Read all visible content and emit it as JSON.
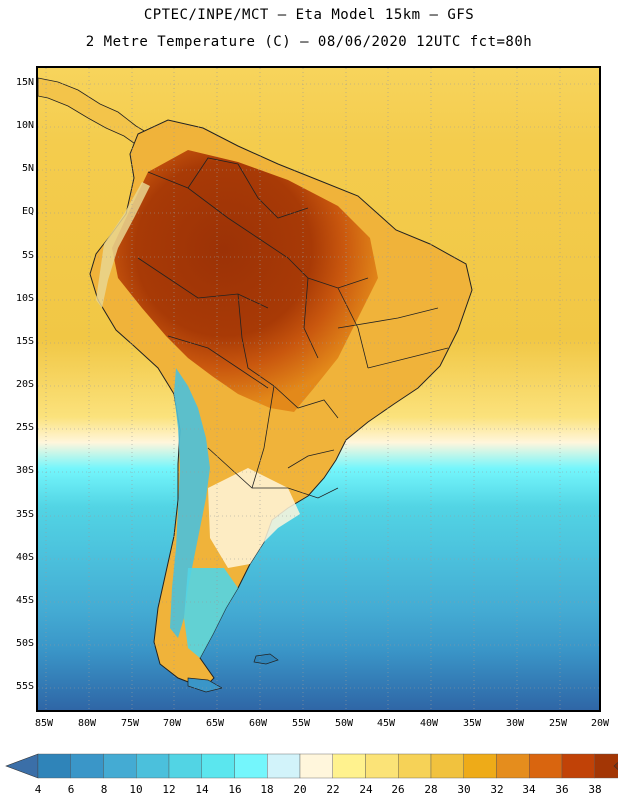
{
  "title": {
    "line1": "CPTEC/INPE/MCT –  Eta Model 15km – GFS",
    "line2": "2 Metre Temperature (C) – 08/06/2020 12UTC fct=80h"
  },
  "lat_ticks": [
    "15N",
    "10N",
    "5N",
    "EQ",
    "5S",
    "10S",
    "15S",
    "20S",
    "25S",
    "30S",
    "35S",
    "40S",
    "45S",
    "50S",
    "55S"
  ],
  "lon_ticks": [
    "85W",
    "80W",
    "75W",
    "70W",
    "65W",
    "60W",
    "55W",
    "50W",
    "45W",
    "40W",
    "35W",
    "30W",
    "25W",
    "20W"
  ],
  "colorbar": {
    "labels": [
      "4",
      "6",
      "8",
      "10",
      "12",
      "14",
      "16",
      "18",
      "20",
      "22",
      "24",
      "26",
      "28",
      "30",
      "32",
      "34",
      "36",
      "38"
    ],
    "colors": [
      "#3b6fa8",
      "#2f84b9",
      "#3a96c8",
      "#44abd3",
      "#4bc0dc",
      "#52d4e4",
      "#5be6ee",
      "#74f6fc",
      "#d2f3fa",
      "#fff6dc",
      "#fff28e",
      "#fbe377",
      "#f6d257",
      "#f1c23e",
      "#eeab18",
      "#e58d1d",
      "#d9650f",
      "#c14207",
      "#a33605",
      "#8c2c04"
    ]
  },
  "map": {
    "ocean_north_color": "#f4cf52",
    "ocean_south_color": "#2e63a4",
    "land_hot_color": "#9c3206"
  }
}
